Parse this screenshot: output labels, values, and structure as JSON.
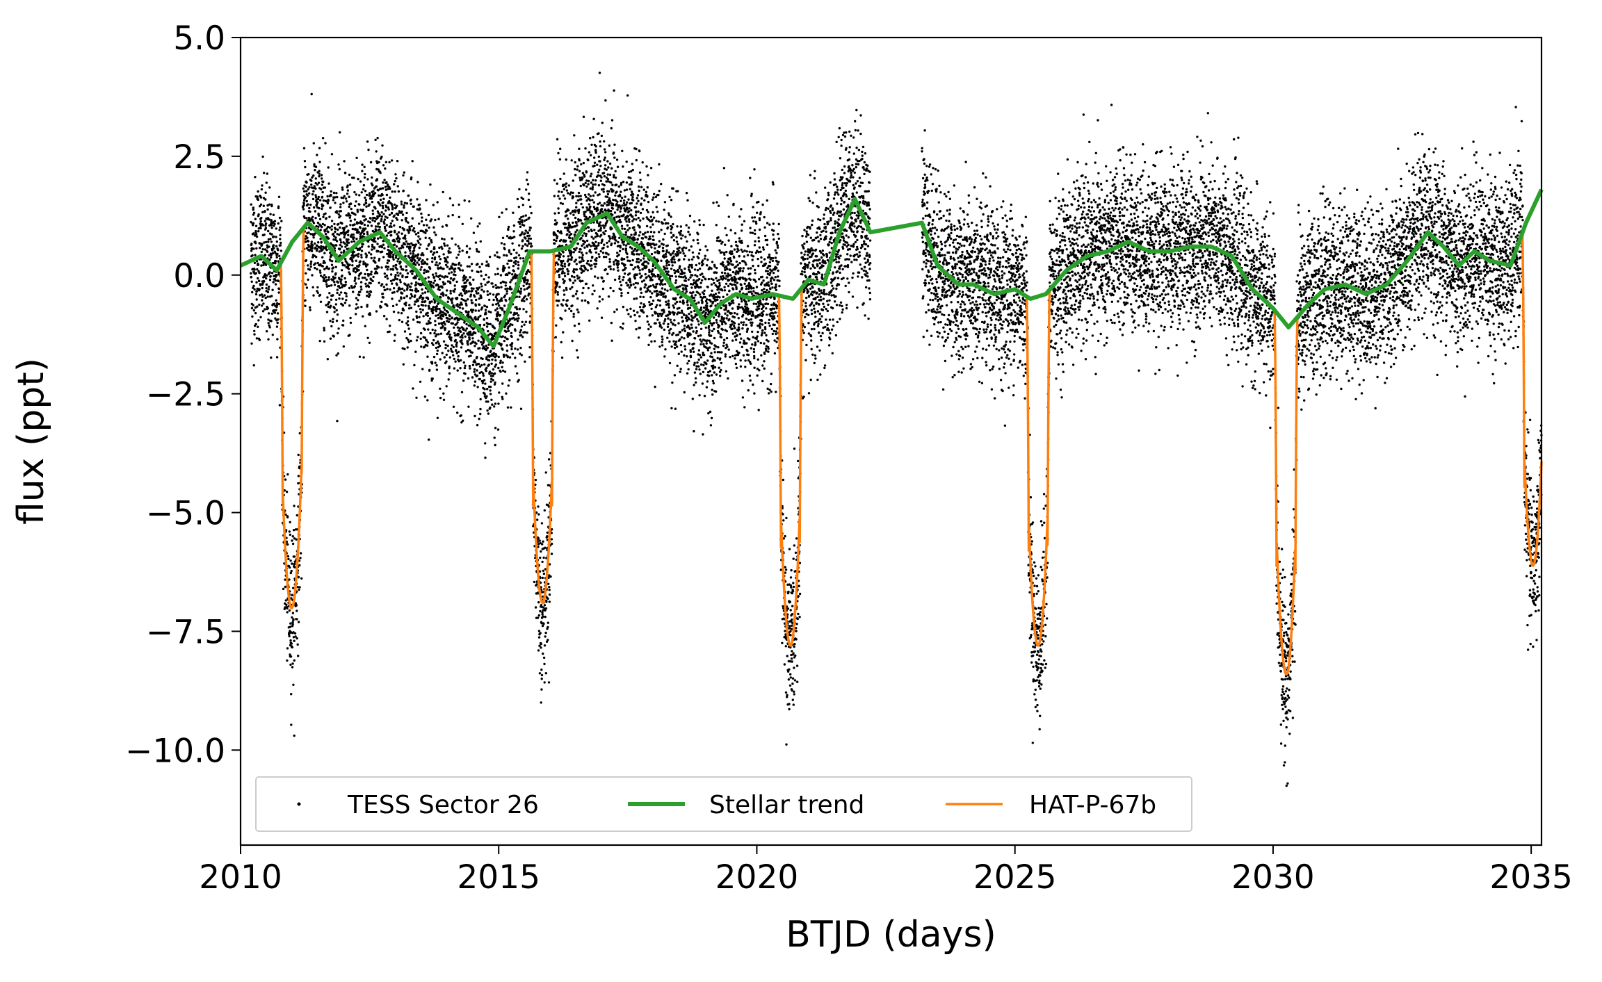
{
  "chart_data": {
    "type": "scatter",
    "title": "",
    "xlabel": "BTJD (days)",
    "ylabel": "flux (ppt)",
    "xlim": [
      2010,
      2035.2
    ],
    "ylim": [
      -12,
      5
    ],
    "xticks": [
      2010,
      2015,
      2020,
      2025,
      2030,
      2035
    ],
    "xtick_labels": [
      "2010",
      "2015",
      "2020",
      "2025",
      "2030",
      "2035"
    ],
    "yticks": [
      5,
      2.5,
      0,
      -2.5,
      -5,
      -7.5,
      -10
    ],
    "ytick_labels": [
      "5.0",
      "2.5",
      "0.0",
      "−2.5",
      "−5.0",
      "−7.5",
      "−10.0"
    ],
    "grid": false,
    "legend_position": "lower-left",
    "series": [
      {
        "name": "TESS Sector 26",
        "kind": "scatter",
        "color": "#000000",
        "segments": [
          [
            2010.2,
            2022.2
          ],
          [
            2023.2,
            2035.2
          ]
        ],
        "noise_sigma": 0.85
      },
      {
        "name": "Stellar trend",
        "kind": "line",
        "color": "#2ca02c",
        "x": [
          2010.0,
          2010.4,
          2010.7,
          2011.0,
          2011.3,
          2011.6,
          2011.9,
          2012.3,
          2012.7,
          2013.0,
          2013.4,
          2013.8,
          2014.2,
          2014.6,
          2014.9,
          2015.2,
          2015.6,
          2016.0,
          2016.4,
          2016.7,
          2017.1,
          2017.4,
          2017.7,
          2018.0,
          2018.4,
          2018.7,
          2019.0,
          2019.3,
          2019.6,
          2019.9,
          2020.3,
          2020.7,
          2021.0,
          2021.3,
          2021.6,
          2021.9,
          2022.2,
          2023.2,
          2023.5,
          2023.9,
          2024.2,
          2024.6,
          2025.0,
          2025.3,
          2025.6,
          2026.0,
          2026.4,
          2026.8,
          2027.2,
          2027.6,
          2028.0,
          2028.4,
          2028.8,
          2029.2,
          2029.6,
          2030.0,
          2030.3,
          2030.7,
          2031.0,
          2031.4,
          2031.8,
          2032.2,
          2032.6,
          2033.0,
          2033.3,
          2033.6,
          2033.9,
          2034.2,
          2034.6,
          2034.9,
          2035.2
        ],
        "y": [
          0.2,
          0.4,
          0.1,
          0.7,
          1.1,
          0.8,
          0.3,
          0.7,
          0.9,
          0.5,
          0.1,
          -0.5,
          -0.8,
          -1.1,
          -1.5,
          -0.7,
          0.5,
          0.5,
          0.6,
          1.1,
          1.3,
          0.8,
          0.6,
          0.3,
          -0.3,
          -0.5,
          -1.0,
          -0.6,
          -0.4,
          -0.5,
          -0.4,
          -0.5,
          -0.1,
          -0.2,
          0.9,
          1.6,
          0.9,
          1.1,
          0.2,
          -0.2,
          -0.2,
          -0.4,
          -0.3,
          -0.5,
          -0.4,
          0.1,
          0.4,
          0.5,
          0.7,
          0.5,
          0.5,
          0.6,
          0.6,
          0.4,
          -0.3,
          -0.7,
          -1.1,
          -0.6,
          -0.3,
          -0.2,
          -0.4,
          -0.2,
          0.3,
          0.9,
          0.6,
          0.2,
          0.5,
          0.3,
          0.2,
          1.1,
          1.8
        ]
      },
      {
        "name": "HAT-P-67b",
        "kind": "line",
        "color": "#ff7f0e",
        "transit_centers": [
          2011.0,
          2015.85,
          2020.65,
          2025.45,
          2030.25,
          2035.05
        ],
        "transit_depths": [
          -7.0,
          -6.9,
          -7.8,
          -7.8,
          -8.4,
          -6.1
        ],
        "transit_half_width": 0.22
      }
    ]
  }
}
